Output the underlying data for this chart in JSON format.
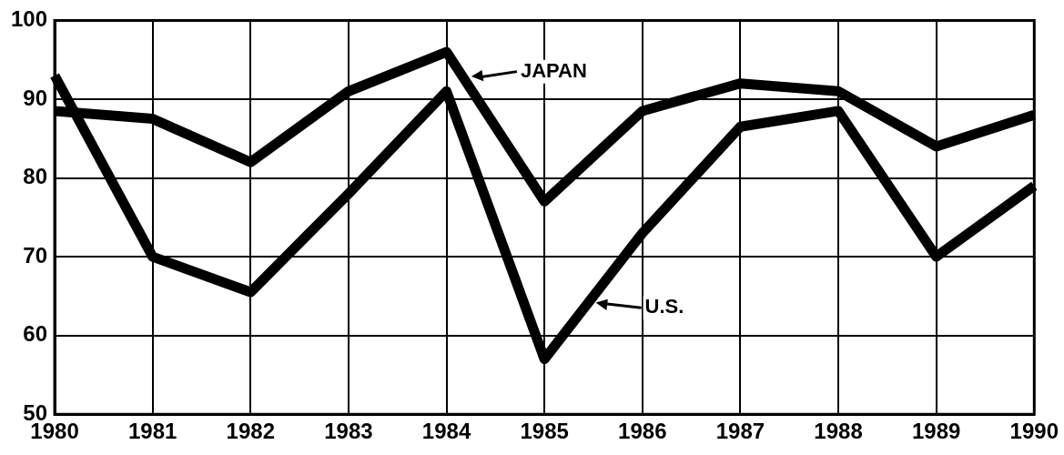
{
  "chart_data": {
    "type": "line",
    "categories": [
      "1980",
      "1981",
      "1982",
      "1983",
      "1984",
      "1985",
      "1986",
      "1987",
      "1988",
      "1989",
      "1990"
    ],
    "series": [
      {
        "name": "JAPAN",
        "color": "#000000",
        "values": [
          88.5,
          87.5,
          82,
          91,
          96,
          77,
          88.5,
          92,
          91,
          84,
          88
        ]
      },
      {
        "name": "U.S.",
        "color": "#000000",
        "values": [
          93,
          70,
          65.5,
          78,
          91,
          57,
          73,
          86.5,
          88.5,
          70,
          79
        ]
      }
    ],
    "ylim": [
      50,
      100
    ],
    "yticks": [
      50,
      60,
      70,
      80,
      90,
      100
    ],
    "grid": true,
    "legend": "top",
    "marker": "none",
    "line_style": "solid"
  }
}
